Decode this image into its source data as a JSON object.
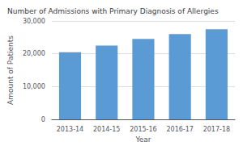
{
  "chart_data": {
    "type": "bar",
    "title": "Number of Admissions with Primary Diagnosis of Allergies",
    "xlabel": "Year",
    "ylabel": "Amount of Patients",
    "categories": [
      "2013-14",
      "2014-15",
      "2015-16",
      "2016-17",
      "2017-18"
    ],
    "values": [
      20500,
      22500,
      24500,
      26000,
      27500
    ],
    "color": "#5b9bd5",
    "ylim": [
      0,
      30000
    ],
    "yticks": [
      0,
      {
        "value": 10000,
        "label": "10,000"
      },
      {
        "value": 20000,
        "label": "20,000"
      },
      {
        "value": 30000,
        "label": "30,000"
      }
    ],
    "grid": true
  }
}
